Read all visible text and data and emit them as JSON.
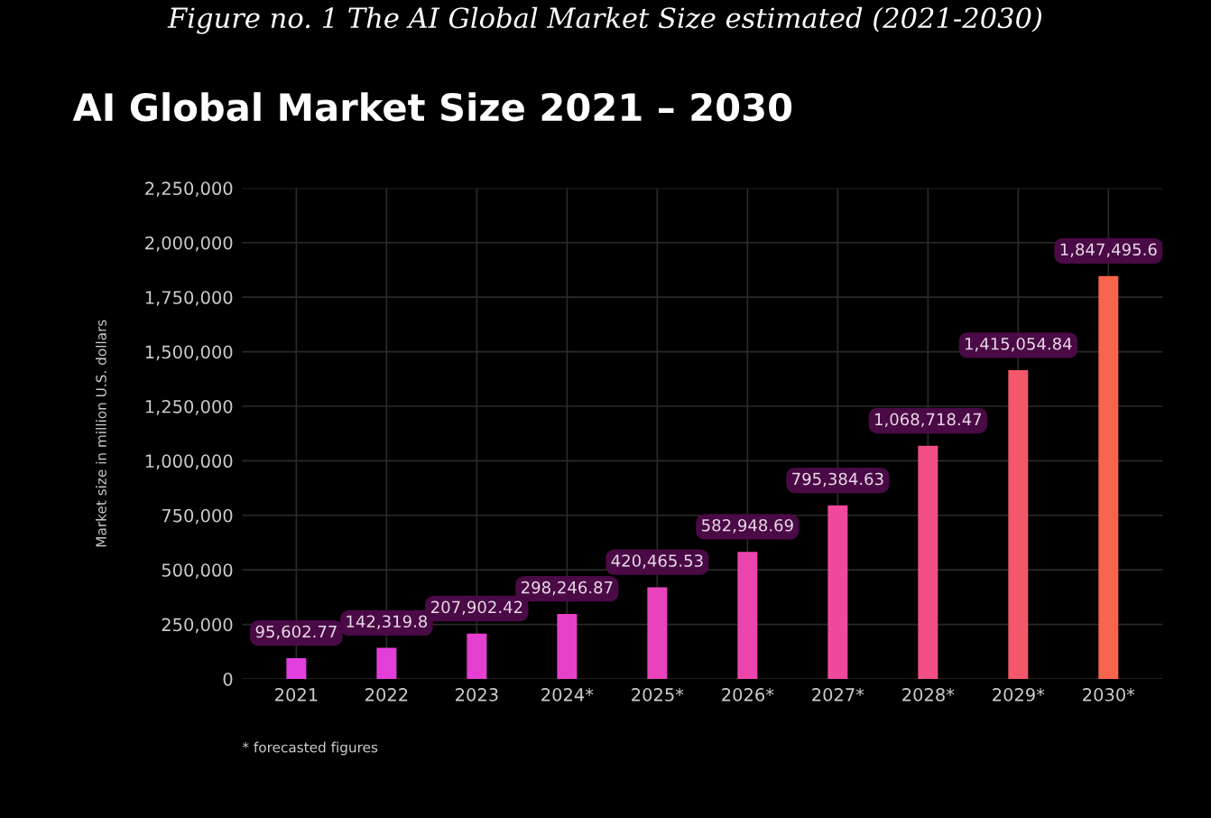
{
  "chart_data": {
    "type": "bar",
    "title": "AI Global Market Size 2021 – 2030",
    "ylabel": "Market size in million U.S. dollars",
    "categories": [
      "2021",
      "2022",
      "2023",
      "2024*",
      "2025*",
      "2026*",
      "2027*",
      "2028*",
      "2029*",
      "2030*"
    ],
    "values": [
      95602.77,
      142319.8,
      207902.42,
      298246.87,
      420465.53,
      582948.69,
      795384.63,
      1068718.47,
      1415054.84,
      1847495.6
    ],
    "colors": [
      "#e23ee0",
      "#e33ed9",
      "#e53fd2",
      "#e740c8",
      "#e942bc",
      "#ec44ad",
      "#ef489c",
      "#f24e86",
      "#f5576a",
      "#f8654c"
    ],
    "ylim": [
      0,
      2250000
    ],
    "yticks": [
      0,
      {
        "value": 250000,
        "label": "250,000"
      },
      {
        "value": 500000,
        "label": "500,000"
      },
      {
        "value": 750000,
        "label": "750,000"
      },
      {
        "value": 1000000,
        "label": "1,000,000"
      },
      {
        "value": 1250000,
        "label": "1,250,000"
      },
      {
        "value": 1500000,
        "label": "1,500,000"
      },
      {
        "value": 1750000,
        "label": "1,750,000"
      },
      {
        "value": 2000000,
        "label": "2,000,000"
      },
      {
        "value": 2250000,
        "label": "2,250,000"
      }
    ],
    "grid": true,
    "value_labels": [
      "95,602.77",
      "142,319.8",
      "207,902.42",
      "298,246.87",
      "420,465.53",
      "582,948.69",
      "795,384.63",
      "1,068,718.47",
      "1,415,054.84",
      "1,847,495.6"
    ],
    "annotations": [
      "Figure no. 1 The AI Global Market Size estimated (2021-2030)",
      "* forecasted figures"
    ]
  }
}
